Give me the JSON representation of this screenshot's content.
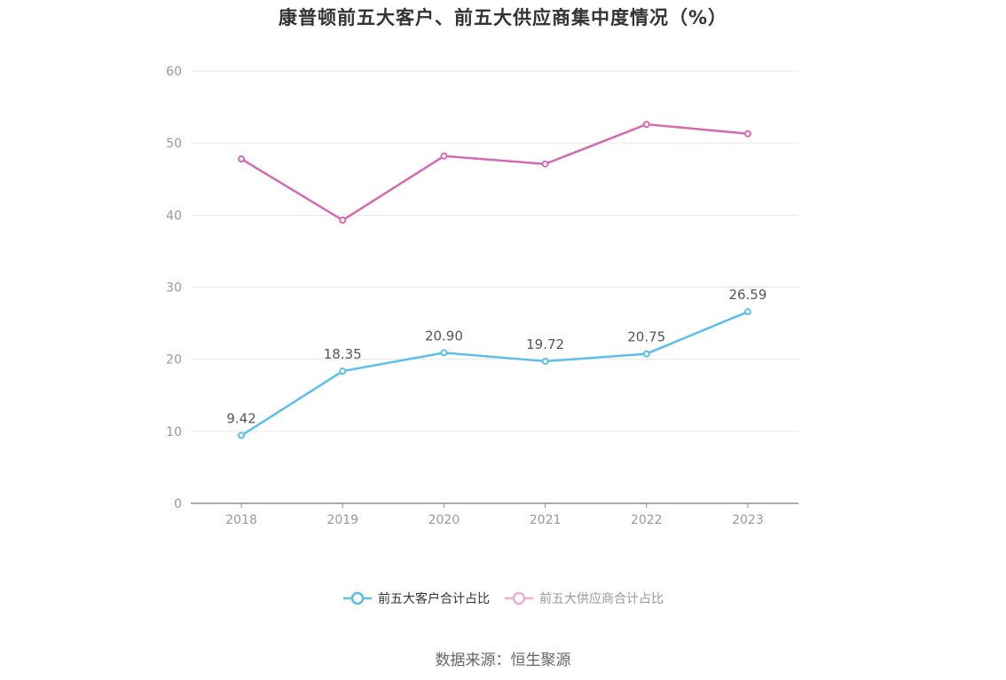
{
  "chart_data": {
    "type": "line",
    "title": "康普顿前五大客户、前五大供应商集中度情况（%）",
    "categories": [
      "2018",
      "2019",
      "2020",
      "2021",
      "2022",
      "2023"
    ],
    "series": [
      {
        "name": "前五大客户合计占比",
        "values": [
          9.42,
          18.35,
          20.9,
          19.72,
          20.75,
          26.59
        ],
        "labels": [
          "9.42",
          "18.35",
          "20.90",
          "19.72",
          "20.75",
          "26.59"
        ],
        "color": "#5bbfee",
        "show_labels": true
      },
      {
        "name": "前五大供应商合计占比",
        "values": [
          47.8,
          39.3,
          48.2,
          47.1,
          52.6,
          51.3
        ],
        "color": "#d46bb2",
        "legend_color": "#e8b0d6",
        "show_labels": false
      }
    ],
    "ylim": [
      0,
      60
    ],
    "yticks": [
      0,
      10,
      20,
      30,
      40,
      50,
      60
    ],
    "grid": true,
    "legend_position": "bottom"
  },
  "source": "数据来源：恒生聚源"
}
